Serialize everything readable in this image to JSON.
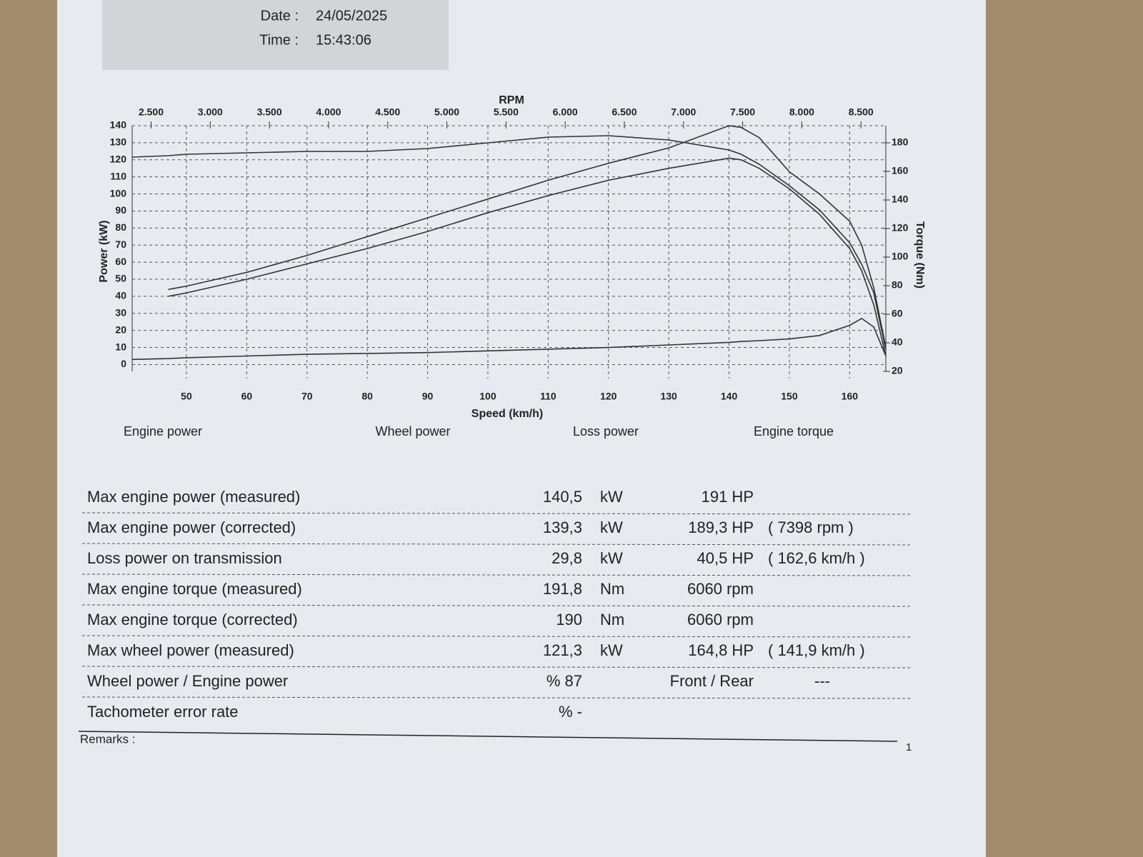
{
  "header": {
    "date_label": "Date :",
    "date": "24/05/2025",
    "time_label": "Time :",
    "time": "15:43:06"
  },
  "chart_data": {
    "type": "line",
    "x_label": "Speed (km/h)",
    "x2_label": "RPM",
    "y_label": "Power (kW)",
    "y2_label": "Torque (Nm)",
    "x": [
      41,
      47,
      50,
      60,
      70,
      80,
      90,
      100,
      110,
      120,
      130,
      140,
      142,
      145,
      150,
      155,
      160,
      162,
      164,
      166
    ],
    "series": [
      {
        "name": "Engine power",
        "color": "#333333",
        "values": [
          null,
          44,
          46,
          54,
          64,
          75,
          86,
          97,
          108,
          118,
          127,
          140,
          139,
          133,
          113,
          100,
          84,
          70,
          45,
          10
        ]
      },
      {
        "name": "Wheel power",
        "color": "#333333",
        "values": [
          null,
          40,
          42,
          50,
          59,
          68,
          78,
          89,
          99,
          108,
          115,
          121,
          120,
          115,
          103,
          88,
          68,
          55,
          35,
          5
        ]
      },
      {
        "name": "Loss power",
        "color": "#333333",
        "values": [
          3,
          3.5,
          4,
          5,
          6,
          6.5,
          7,
          8,
          9,
          10,
          11.5,
          13,
          13.5,
          14,
          15,
          17,
          23,
          27,
          22,
          5
        ]
      },
      {
        "name": "Engine torque",
        "color": "#333333",
        "axis": "y2",
        "values": [
          170,
          171,
          172,
          173,
          174,
          174,
          176,
          180,
          184,
          185,
          182,
          175,
          172,
          165,
          150,
          133,
          110,
          95,
          75,
          35
        ]
      }
    ],
    "xlim": [
      41,
      166
    ],
    "xticks": [
      50,
      60,
      70,
      80,
      90,
      100,
      110,
      120,
      130,
      140,
      150,
      160
    ],
    "x2lim": [
      2340,
      8710
    ],
    "x2ticks": [
      {
        "value": 2500,
        "label": "2.500"
      },
      {
        "value": 3000,
        "label": "3.000"
      },
      {
        "value": 3500,
        "label": "3.500"
      },
      {
        "value": 4000,
        "label": "4.000"
      },
      {
        "value": 4500,
        "label": "4.500"
      },
      {
        "value": 5000,
        "label": "5.000"
      },
      {
        "value": 5500,
        "label": "5.500"
      },
      {
        "value": 6000,
        "label": "6.000"
      },
      {
        "value": 6500,
        "label": "6.500"
      },
      {
        "value": 7000,
        "label": "7.000"
      },
      {
        "value": 7500,
        "label": "7.500"
      },
      {
        "value": 8000,
        "label": "8.000"
      },
      {
        "value": 8500,
        "label": "8.500"
      }
    ],
    "ylim": [
      -4,
      140
    ],
    "yticks": [
      0,
      10,
      20,
      30,
      40,
      50,
      60,
      70,
      80,
      90,
      100,
      110,
      120,
      130,
      140
    ],
    "y2lim": [
      20,
      192
    ],
    "y2ticks": [
      20,
      40,
      60,
      80,
      100,
      120,
      140,
      160,
      180
    ],
    "grid": true
  },
  "table": {
    "rows": [
      {
        "label": "Max engine power (measured)",
        "value": "140,5",
        "unit": "kW",
        "second": "191 HP"
      },
      {
        "label": "Max engine power (corrected)",
        "value": "139,3",
        "unit": "kW",
        "second": "189,3 HP",
        "note": "( 7398 rpm )"
      },
      {
        "label": "Loss power on transmission",
        "value": "29,8",
        "unit": "kW",
        "second": "40,5 HP",
        "note": "( 162,6 km/h )"
      },
      {
        "label": "Max engine torque (measured)",
        "value": "191,8",
        "unit": "Nm",
        "second": "6060 rpm"
      },
      {
        "label": "Max engine torque (corrected)",
        "value": "190",
        "unit": "Nm",
        "second": "6060 rpm"
      },
      {
        "label": "Max wheel power (measured)",
        "value": "121,3",
        "unit": "kW",
        "second": "164,8 HP",
        "note": "( 141,9 km/h )"
      },
      {
        "label": "Wheel power / Engine power",
        "value": "% 87",
        "second": "Front / Rear",
        "note": "---"
      },
      {
        "label": "Tachometer error rate",
        "value": "% -"
      }
    ]
  },
  "remarks": "Remarks :",
  "page_number": "1"
}
